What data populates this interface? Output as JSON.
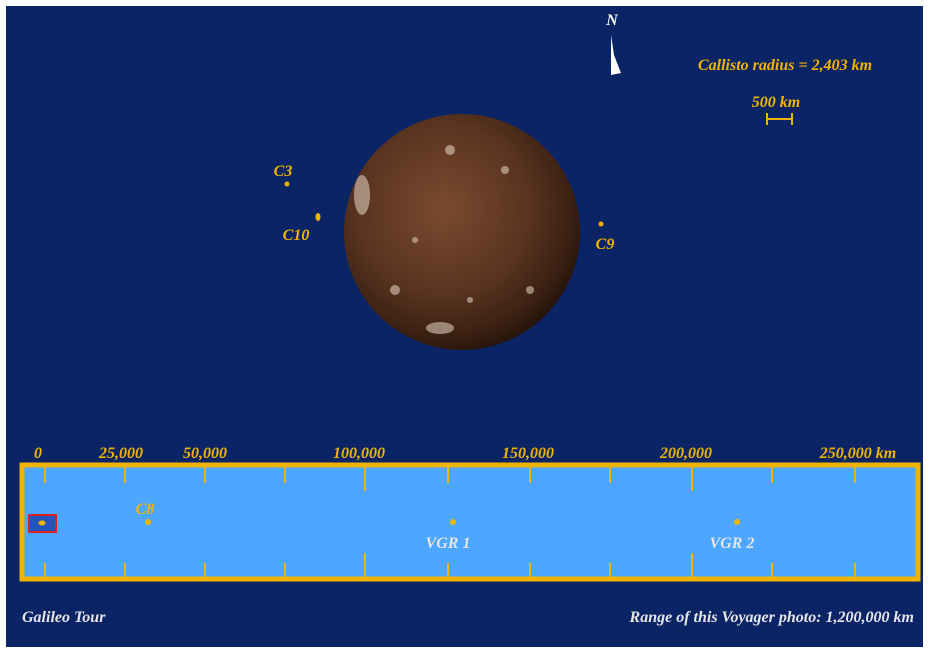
{
  "north": "N",
  "radius_label": "Callisto radius = 2,403 km",
  "scale_bar": "500 km",
  "flybys": [
    "C3",
    "C10",
    "C9"
  ],
  "ruler": {
    "ticks": [
      "0",
      "25,000",
      "50,000",
      "100,000",
      "150,000",
      "200,000",
      "250,000 km"
    ],
    "flybys": [
      "C8",
      "VGR 1",
      "VGR 2"
    ]
  },
  "footer": {
    "left": "Galileo Tour",
    "right": "Range of this Voyager photo: 1,200,000 km"
  }
}
